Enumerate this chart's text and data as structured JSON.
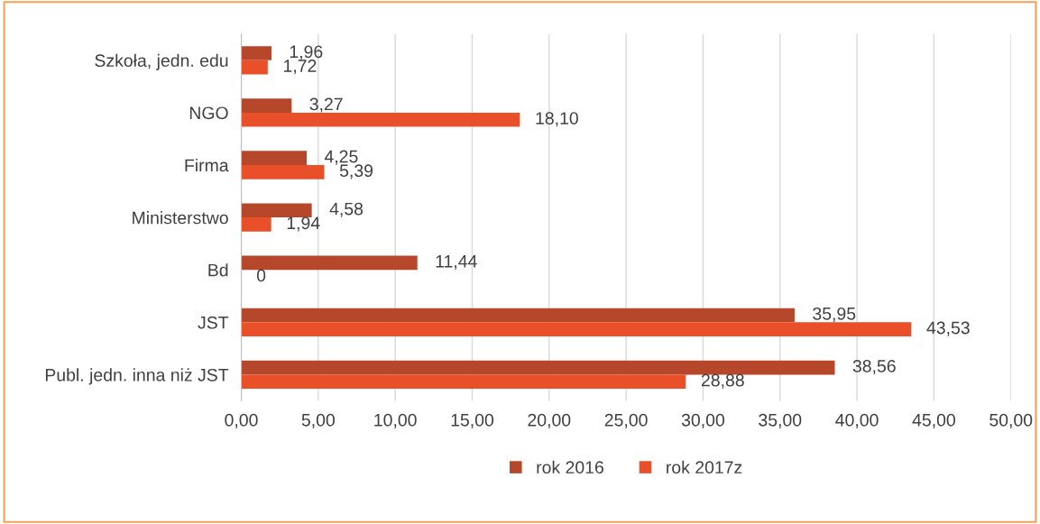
{
  "chart_data": {
    "type": "bar",
    "orientation": "horizontal",
    "categories": [
      "Szkoła, jedn. edu",
      "NGO",
      "Firma",
      "Ministerstwo",
      "Bd",
      "JST",
      "Publ. jedn. inna niż JST"
    ],
    "series": [
      {
        "name": "rok 2016",
        "color": "#b7472a",
        "values": [
          1.96,
          3.27,
          4.25,
          4.58,
          11.44,
          35.95,
          38.56
        ],
        "value_labels": [
          "1,96",
          "3,27",
          "4,25",
          "4,58",
          "11,44",
          "35,95",
          "38,56"
        ]
      },
      {
        "name": "rok 2017z",
        "color": "#e9502a",
        "values": [
          1.72,
          18.1,
          5.39,
          1.94,
          0,
          43.53,
          28.88
        ],
        "value_labels": [
          "1,72",
          "18,10",
          "5,39",
          "1,94",
          "0",
          "43,53",
          "28,88"
        ]
      }
    ],
    "xlim": [
      0,
      50
    ],
    "xticks": [
      {
        "value": 0,
        "label": "0,00"
      },
      {
        "value": 5,
        "label": "5,00"
      },
      {
        "value": 10,
        "label": "10,00"
      },
      {
        "value": 15,
        "label": "15,00"
      },
      {
        "value": 20,
        "label": "20,00"
      },
      {
        "value": 25,
        "label": "25,00"
      },
      {
        "value": 30,
        "label": "30,00"
      },
      {
        "value": 35,
        "label": "35,00"
      },
      {
        "value": 40,
        "label": "40,00"
      },
      {
        "value": 45,
        "label": "45,00"
      },
      {
        "value": 50,
        "label": "50,00"
      }
    ],
    "grid": "x",
    "legend": "bottom"
  }
}
